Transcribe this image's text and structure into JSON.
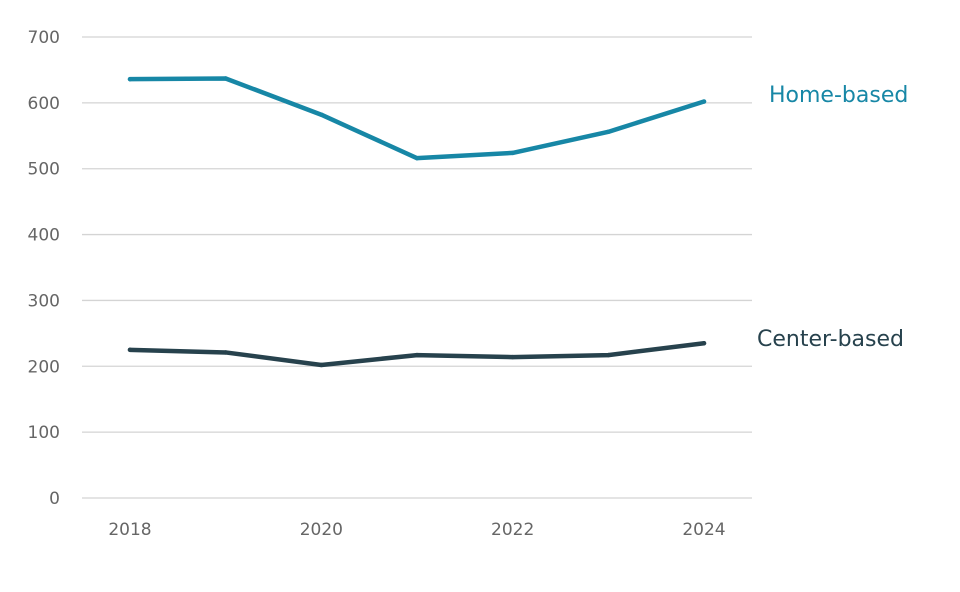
{
  "chart_data": {
    "type": "line",
    "x": [
      2018,
      2019,
      2020,
      2021,
      2022,
      2023,
      2024
    ],
    "x_tick_labels": [
      "2018",
      "2020",
      "2022",
      "2024"
    ],
    "y_tick_labels": [
      "0",
      "100",
      "200",
      "300",
      "400",
      "500",
      "600",
      "700"
    ],
    "ylim": [
      0,
      700
    ],
    "grid": true,
    "legend": "direct-labels-right",
    "series": [
      {
        "name": "Home-based",
        "color": "#1787a6",
        "values": [
          636,
          637,
          582,
          516,
          524,
          556,
          602
        ]
      },
      {
        "name": "Center-based",
        "color": "#27424d",
        "values": [
          225,
          221,
          202,
          217,
          214,
          217,
          235
        ]
      }
    ]
  }
}
